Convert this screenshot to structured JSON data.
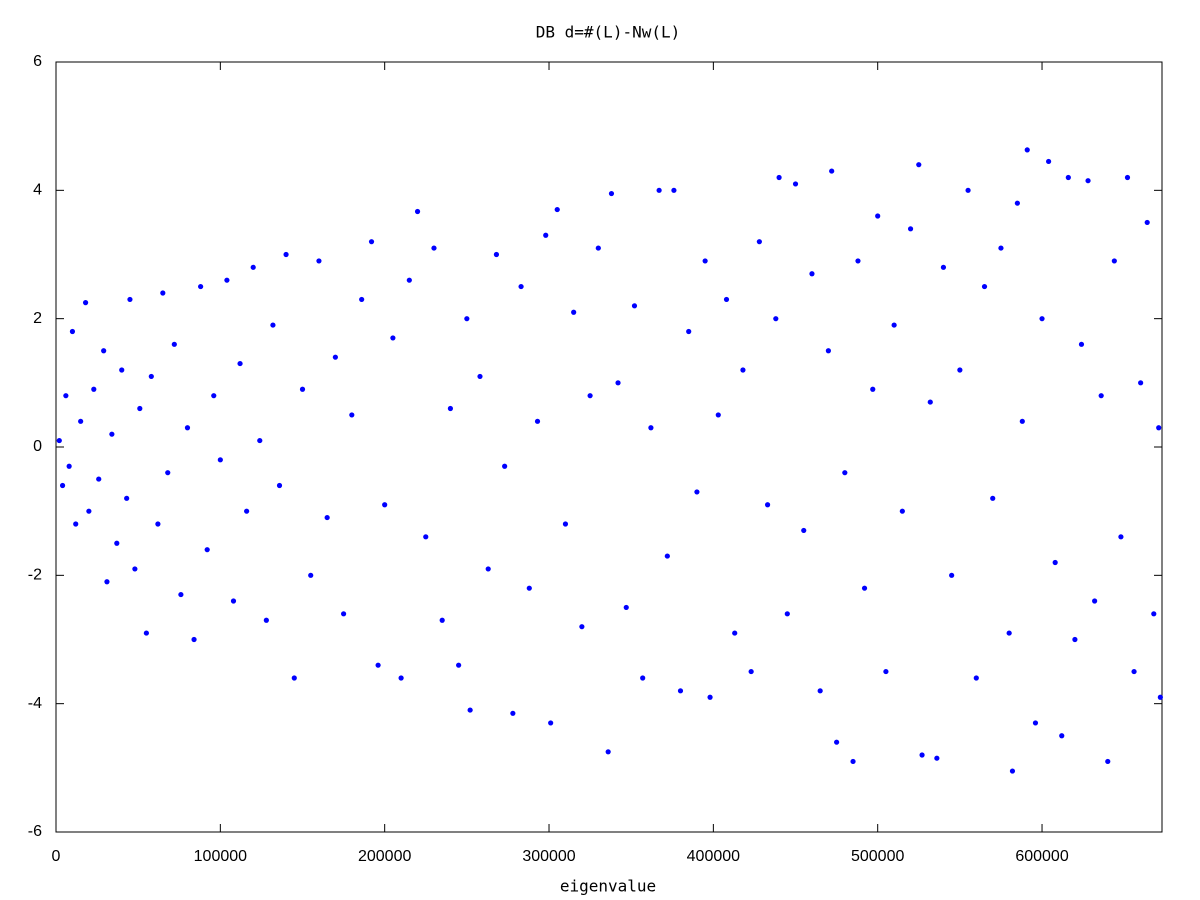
{
  "chart_data": {
    "type": "scatter",
    "title": "DB   d=#(L)-Nw(L)",
    "x_label": "eigenvalue",
    "xlim": [
      0,
      673000
    ],
    "xticks": [
      0,
      100000,
      200000,
      300000,
      400000,
      500000,
      600000
    ],
    "ylim": [
      -6,
      6
    ],
    "yticks": [
      -6,
      -4,
      -2,
      0,
      2,
      4,
      6
    ],
    "grid": false,
    "series": [
      {
        "color": "#0000ff",
        "x": [
          2000,
          4000,
          6000,
          8000,
          10000,
          12000,
          15000,
          18000,
          20000,
          23000,
          26000,
          29000,
          31000,
          34000,
          37000,
          40000,
          43000,
          45000,
          48000,
          51000,
          55000,
          58000,
          62000,
          65000,
          68000,
          72000,
          76000,
          80000,
          84000,
          88000,
          92000,
          96000,
          100000,
          104000,
          108000,
          112000,
          116000,
          120000,
          124000,
          128000,
          132000,
          136000,
          140000,
          145000,
          150000,
          155000,
          160000,
          165000,
          170000,
          175000,
          180000,
          186000,
          192000,
          196000,
          200000,
          205000,
          210000,
          215000,
          220000,
          225000,
          230000,
          235000,
          240000,
          245000,
          250000,
          252000,
          258000,
          263000,
          268000,
          273000,
          278000,
          283000,
          288000,
          293000,
          298000,
          301000,
          305000,
          310000,
          315000,
          320000,
          325000,
          330000,
          336000,
          338000,
          342000,
          347000,
          352000,
          357000,
          362000,
          367000,
          372000,
          376000,
          380000,
          385000,
          390000,
          395000,
          398000,
          403000,
          408000,
          413000,
          418000,
          423000,
          428000,
          433000,
          438000,
          440000,
          445000,
          450000,
          455000,
          460000,
          465000,
          470000,
          472000,
          475000,
          480000,
          485000,
          488000,
          492000,
          497000,
          500000,
          505000,
          510000,
          515000,
          520000,
          525000,
          527000,
          532000,
          536000,
          540000,
          545000,
          550000,
          555000,
          560000,
          565000,
          570000,
          575000,
          580000,
          582000,
          585000,
          588000,
          591000,
          596000,
          600000,
          604000,
          608000,
          612000,
          616000,
          620000,
          624000,
          628000,
          632000,
          636000,
          640000,
          644000,
          648000,
          652000,
          656000,
          660000,
          664000,
          668000,
          671000,
          672000
        ],
        "values": [
          0.1,
          -0.6,
          0.8,
          -0.3,
          1.8,
          -1.2,
          0.4,
          2.25,
          -1.0,
          0.9,
          -0.5,
          1.5,
          -2.1,
          0.2,
          -1.5,
          1.2,
          -0.8,
          2.3,
          -1.9,
          0.6,
          -2.9,
          1.1,
          -1.2,
          2.4,
          -0.4,
          1.6,
          -2.3,
          0.3,
          -3.0,
          2.5,
          -1.6,
          0.8,
          -0.2,
          2.6,
          -2.4,
          1.3,
          -1.0,
          2.8,
          0.1,
          -2.7,
          1.9,
          -0.6,
          3.0,
          -3.6,
          0.9,
          -2.0,
          2.9,
          -1.1,
          1.4,
          -2.6,
          0.5,
          2.3,
          3.2,
          -3.4,
          -0.9,
          1.7,
          -3.6,
          2.6,
          3.67,
          -1.4,
          3.1,
          -2.7,
          0.6,
          -3.4,
          2.0,
          -4.1,
          1.1,
          -1.9,
          3.0,
          -0.3,
          -4.15,
          2.5,
          -2.2,
          0.4,
          3.3,
          -4.3,
          3.7,
          -1.2,
          2.1,
          -2.8,
          0.8,
          3.1,
          -4.75,
          3.95,
          1.0,
          -2.5,
          2.2,
          -3.6,
          0.3,
          4.0,
          -1.7,
          4.0,
          -3.8,
          1.8,
          -0.7,
          2.9,
          -3.9,
          0.5,
          2.3,
          -2.9,
          1.2,
          -3.5,
          3.2,
          -0.9,
          2.0,
          4.2,
          -2.6,
          4.1,
          -1.3,
          2.7,
          -3.8,
          1.5,
          4.3,
          -4.6,
          -0.4,
          -4.9,
          2.9,
          -2.2,
          0.9,
          3.6,
          -3.5,
          1.9,
          -1.0,
          3.4,
          4.4,
          -4.8,
          0.7,
          -4.85,
          2.8,
          -2.0,
          1.2,
          4.0,
          -3.6,
          2.5,
          -0.8,
          3.1,
          -2.9,
          -5.05,
          3.8,
          0.4,
          4.63,
          -4.3,
          2.0,
          4.45,
          -1.8,
          -4.5,
          4.2,
          -3.0,
          1.6,
          4.15,
          -2.4,
          0.8,
          -4.9,
          2.9,
          -1.4,
          4.2,
          -3.5,
          1.0,
          3.5,
          -2.6,
          0.3,
          -3.9
        ]
      }
    ]
  }
}
